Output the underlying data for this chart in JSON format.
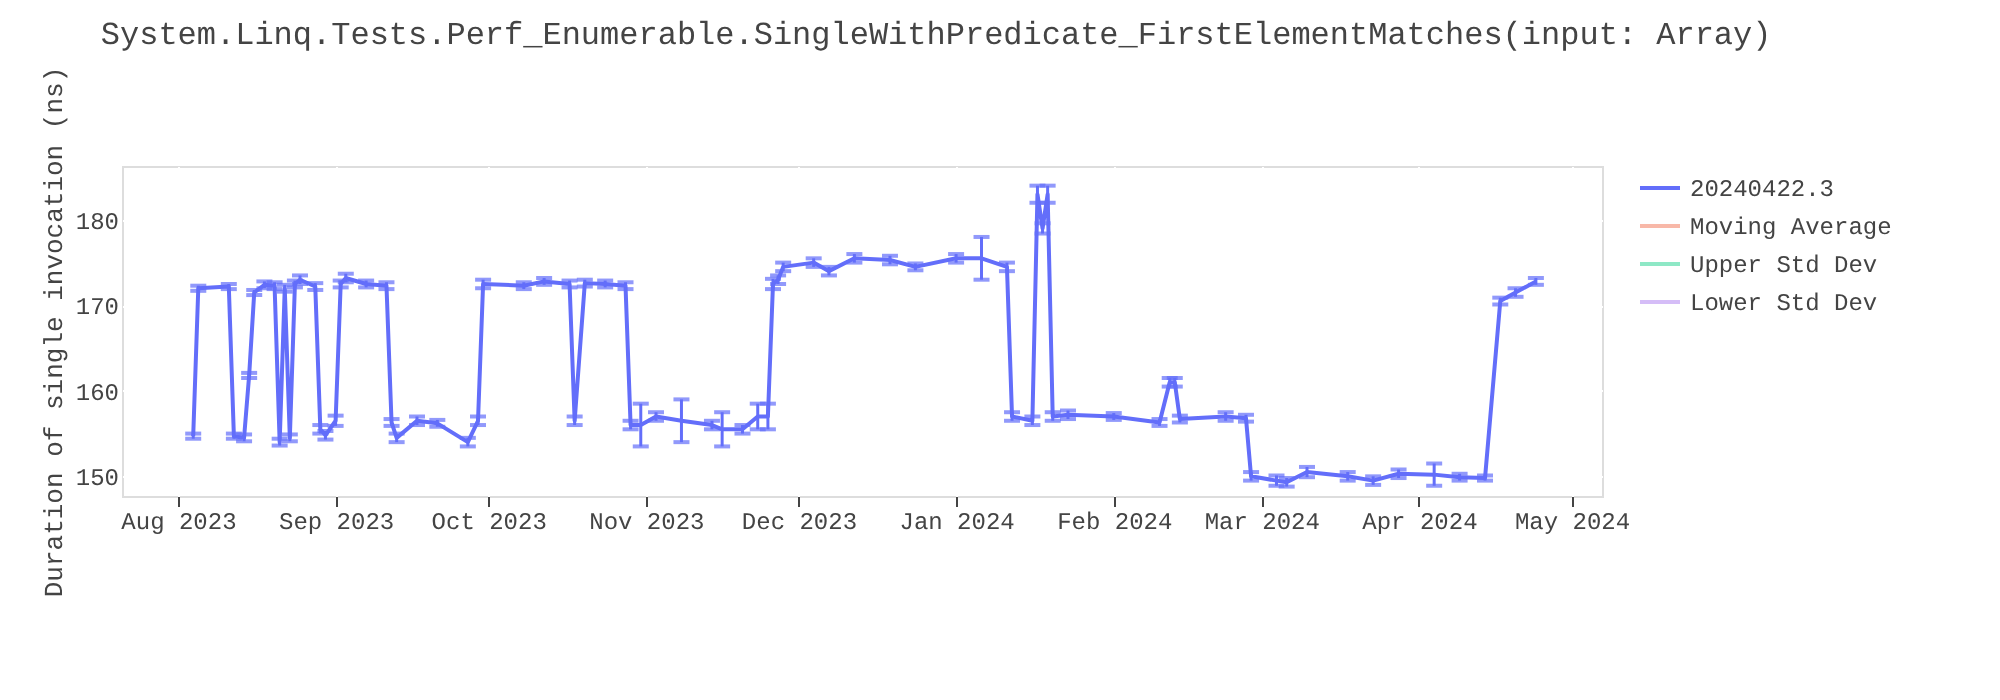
{
  "chart_data": {
    "type": "line",
    "title": "System.Linq.Tests.Perf_Enumerable.SingleWithPredicate_FirstElementMatches(input: Array)",
    "ylabel": "Duration of single invocation (ns)",
    "xlim": [
      "2023-07-21",
      "2024-05-07"
    ],
    "ylim": [
      147.7,
      186.3
    ],
    "xticks": [
      {
        "value": "2023-08-01",
        "label": "Aug 2023"
      },
      {
        "value": "2023-09-01",
        "label": "Sep 2023"
      },
      {
        "value": "2023-10-01",
        "label": "Oct 2023"
      },
      {
        "value": "2023-11-01",
        "label": "Nov 2023"
      },
      {
        "value": "2023-12-01",
        "label": "Dec 2023"
      },
      {
        "value": "2024-01-01",
        "label": "Jan 2024"
      },
      {
        "value": "2024-02-01",
        "label": "Feb 2024"
      },
      {
        "value": "2024-03-01",
        "label": "Mar 2024"
      },
      {
        "value": "2024-04-01",
        "label": "Apr 2024"
      },
      {
        "value": "2024-05-01",
        "label": "May 2024"
      }
    ],
    "yticks": [
      150,
      160,
      170,
      180
    ],
    "grid": true,
    "legend": "top right",
    "series": [
      {
        "name": "20240422.3",
        "color": "#636efa",
        "x": [
          "2023-08-04",
          "2023-08-05",
          "2023-08-11",
          "2023-08-12",
          "2023-08-14",
          "2023-08-15",
          "2023-08-16",
          "2023-08-18",
          "2023-08-20",
          "2023-08-21",
          "2023-08-22",
          "2023-08-23",
          "2023-08-24",
          "2023-08-25",
          "2023-08-28",
          "2023-08-29",
          "2023-08-30",
          "2023-09-01",
          "2023-09-02",
          "2023-09-03",
          "2023-09-07",
          "2023-09-11",
          "2023-09-12",
          "2023-09-13",
          "2023-09-17",
          "2023-09-21",
          "2023-09-27",
          "2023-09-29",
          "2023-09-30",
          "2023-10-08",
          "2023-10-12",
          "2023-10-17",
          "2023-10-18",
          "2023-10-20",
          "2023-10-24",
          "2023-10-28",
          "2023-10-29",
          "2023-10-31",
          "2023-11-03",
          "2023-11-08",
          "2023-11-14",
          "2023-11-16",
          "2023-11-20",
          "2023-11-23",
          "2023-11-25",
          "2023-11-26",
          "2023-11-27",
          "2023-11-28",
          "2023-12-04",
          "2023-12-07",
          "2023-12-12",
          "2023-12-19",
          "2023-12-24",
          "2024-01-01",
          "2024-01-06",
          "2024-01-11",
          "2024-01-12",
          "2024-01-16",
          "2024-01-17",
          "2024-01-18",
          "2024-01-19",
          "2024-01-20",
          "2024-01-23",
          "2024-02-01",
          "2024-02-10",
          "2024-02-12",
          "2024-02-13",
          "2024-02-14",
          "2024-02-23",
          "2024-02-27",
          "2024-02-28",
          "2024-03-04",
          "2024-03-06",
          "2024-03-10",
          "2024-03-18",
          "2024-03-23",
          "2024-03-28",
          "2024-04-04",
          "2024-04-09",
          "2024-04-14",
          "2024-04-17",
          "2024-04-20",
          "2024-04-24"
        ],
        "values": [
          154.7,
          172,
          172.2,
          154.7,
          154.5,
          161.8,
          171.5,
          172.4,
          172.3,
          154,
          172,
          154.5,
          172.5,
          173,
          172.2,
          155.5,
          154.8,
          156.5,
          172.5,
          173.2,
          172.5,
          172.3,
          156.3,
          154.5,
          156.5,
          156.2,
          154,
          156.5,
          172.5,
          172.3,
          172.8,
          172.5,
          156.5,
          172.6,
          172.5,
          172.3,
          156,
          156,
          157,
          156.5,
          156,
          155.5,
          155.5,
          157,
          157,
          172.5,
          173,
          174.5,
          175,
          174,
          175.5,
          175.3,
          174.5,
          175.5,
          175.5,
          174.5,
          157,
          156.5,
          183,
          179,
          183,
          157,
          157.2,
          157,
          156.3,
          161,
          161,
          156.7,
          157,
          156.8,
          150,
          149.5,
          149.3,
          150.5,
          150,
          149.5,
          150.3,
          150.2,
          149.9,
          149.8,
          170.5,
          171.5,
          172.8
        ],
        "errors": [
          0.3,
          0.3,
          0.3,
          0.3,
          0.4,
          0.3,
          0.3,
          0.4,
          0.4,
          0.4,
          0.4,
          0.4,
          0.4,
          0.5,
          0.4,
          0.5,
          0.5,
          0.6,
          0.4,
          0.5,
          0.4,
          0.4,
          0.4,
          0.5,
          0.5,
          0.4,
          0.5,
          0.5,
          0.5,
          0.4,
          0.4,
          0.4,
          0.5,
          0.4,
          0.4,
          0.4,
          0.5,
          2.5,
          0.5,
          2.5,
          0.5,
          2,
          0.5,
          1.5,
          1.5,
          0.6,
          0.5,
          0.5,
          0.5,
          0.5,
          0.5,
          0.5,
          0.4,
          0.5,
          2.5,
          0.5,
          0.5,
          0.5,
          1,
          0.6,
          1,
          0.5,
          0.5,
          0.4,
          0.4,
          0.5,
          0.5,
          0.4,
          0.5,
          0.4,
          0.5,
          0.6,
          0.5,
          0.6,
          0.5,
          0.5,
          0.5,
          1.3,
          0.4,
          0.3,
          0.4,
          0.5,
          0.4
        ]
      },
      {
        "name": "Moving Average",
        "color": "#f8b8a8"
      },
      {
        "name": "Upper Std Dev",
        "color": "#8ee8c6"
      },
      {
        "name": "Lower Std Dev",
        "color": "#d5bdf7"
      }
    ]
  }
}
